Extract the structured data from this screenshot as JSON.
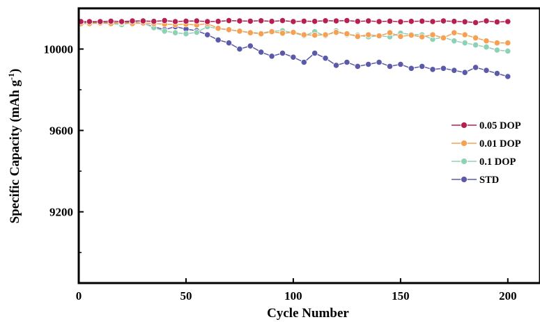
{
  "chart_data": {
    "type": "scatter",
    "title": "",
    "xlabel": "Cycle Number",
    "ylabel_main": "Specific Capacity (mAh g",
    "ylabel_sup": "-1",
    "ylabel_tail": ")",
    "xlim": [
      0,
      215
    ],
    "ylim": [
      8850,
      10200
    ],
    "xticks": [
      0,
      50,
      100,
      150,
      200
    ],
    "yticks": [
      9200,
      9600,
      10000
    ],
    "grid": false,
    "legend_position": "right",
    "series": [
      {
        "name": "0.05 DOP",
        "color": "#b5204f",
        "x": [
          1,
          5,
          10,
          15,
          20,
          25,
          30,
          35,
          40,
          45,
          50,
          55,
          60,
          65,
          70,
          75,
          80,
          85,
          90,
          95,
          100,
          105,
          110,
          115,
          120,
          125,
          130,
          135,
          140,
          145,
          150,
          155,
          160,
          165,
          170,
          175,
          180,
          185,
          190,
          195,
          200
        ],
        "y": [
          10135,
          10135,
          10135,
          10137,
          10135,
          10138,
          10138,
          10136,
          10140,
          10135,
          10137,
          10138,
          10135,
          10136,
          10140,
          10138,
          10137,
          10139,
          10136,
          10140,
          10135,
          10137,
          10136,
          10139,
          10138,
          10140,
          10136,
          10138,
          10135,
          10137,
          10134,
          10136,
          10137,
          10135,
          10138,
          10136,
          10134,
          10130,
          10138,
          10133,
          10135
        ]
      },
      {
        "name": "0.01 DOP",
        "color": "#f5a052",
        "x": [
          1,
          5,
          10,
          15,
          20,
          25,
          30,
          35,
          40,
          45,
          50,
          55,
          60,
          65,
          70,
          75,
          80,
          85,
          90,
          95,
          100,
          105,
          110,
          115,
          120,
          125,
          130,
          135,
          140,
          145,
          150,
          155,
          160,
          165,
          170,
          175,
          180,
          185,
          190,
          195,
          200
        ],
        "y": [
          10125,
          10125,
          10128,
          10125,
          10130,
          10125,
          10128,
          10125,
          10122,
          10120,
          10122,
          10118,
          10125,
          10102,
          10095,
          10088,
          10080,
          10075,
          10085,
          10078,
          10082,
          10070,
          10068,
          10070,
          10082,
          10075,
          10062,
          10070,
          10065,
          10080,
          10062,
          10068,
          10060,
          10070,
          10055,
          10080,
          10070,
          10055,
          10040,
          10030,
          10030
        ]
      },
      {
        "name": "0.1 DOP",
        "color": "#8fd1b4",
        "x": [
          1,
          5,
          10,
          15,
          20,
          25,
          30,
          35,
          40,
          45,
          50,
          55,
          60,
          65,
          70,
          75,
          80,
          85,
          90,
          95,
          100,
          105,
          110,
          115,
          120,
          125,
          130,
          135,
          140,
          145,
          150,
          155,
          160,
          165,
          170,
          175,
          180,
          185,
          190,
          195,
          200
        ],
        "y": [
          10128,
          10125,
          10128,
          10125,
          10120,
          10130,
          10128,
          10105,
          10088,
          10080,
          10075,
          10082,
          10110,
          10100,
          10095,
          10088,
          10082,
          10078,
          10088,
          10090,
          10080,
          10065,
          10085,
          10065,
          10090,
          10070,
          10068,
          10060,
          10065,
          10060,
          10078,
          10072,
          10070,
          10048,
          10058,
          10040,
          10030,
          10020,
          10010,
          9995,
          9990
        ]
      },
      {
        "name": "STD",
        "color": "#5a5aa8",
        "x": [
          1,
          5,
          10,
          15,
          20,
          25,
          30,
          35,
          40,
          45,
          50,
          55,
          60,
          65,
          70,
          75,
          80,
          85,
          90,
          95,
          100,
          105,
          110,
          115,
          120,
          125,
          130,
          135,
          140,
          145,
          150,
          155,
          160,
          165,
          170,
          175,
          180,
          185,
          190,
          195,
          200
        ],
        "y": [
          10130,
          10130,
          10130,
          10130,
          10128,
          10135,
          10125,
          10110,
          10095,
          10110,
          10098,
          10090,
          10070,
          10045,
          10030,
          10000,
          10015,
          9985,
          9965,
          9980,
          9960,
          9935,
          9980,
          9955,
          9920,
          9935,
          9915,
          9925,
          9935,
          9915,
          9925,
          9905,
          9915,
          9900,
          9905,
          9895,
          9885,
          9910,
          9895,
          9880,
          9865
        ]
      }
    ]
  }
}
